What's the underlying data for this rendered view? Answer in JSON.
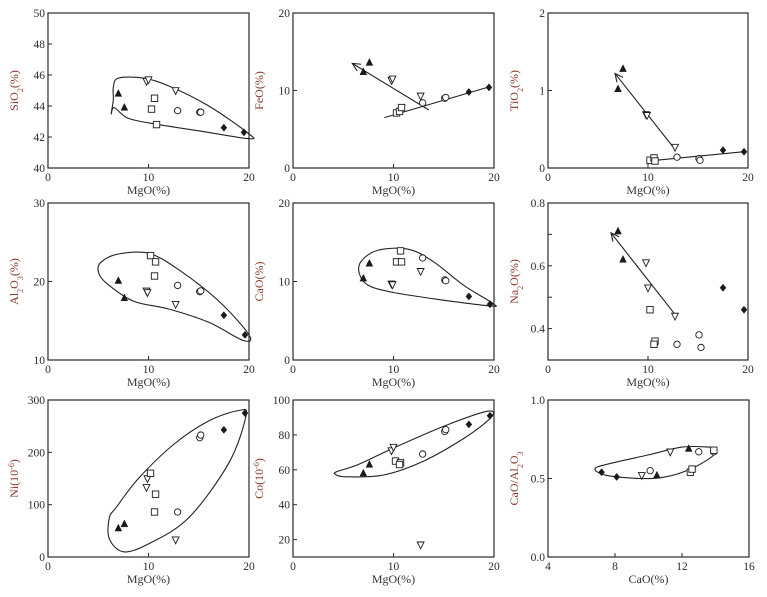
{
  "colors": {
    "axis": "#2a2a2a",
    "ytitle": "#8a3b2c",
    "marker": "#1a1a1a"
  },
  "chart_data": [
    {
      "id": "sio2",
      "type": "scatter",
      "xlabel": "MgO(%)",
      "ylabel": "SiO",
      "ylabel_sub": "2",
      "ylabel_tail": "(%)",
      "xlim": [
        0,
        20
      ],
      "ylim": [
        40,
        50
      ],
      "xticks": [
        0,
        10,
        20
      ],
      "yticks": [
        40,
        42,
        44,
        46,
        48,
        50
      ],
      "xtick_labels": [
        "0",
        "10",
        "20"
      ],
      "ytick_labels": [
        "40",
        "42",
        "44",
        "46",
        "48",
        "50"
      ],
      "points": [
        {
          "m": "tri",
          "x": 7.0,
          "y": 44.8
        },
        {
          "m": "tri",
          "x": 7.6,
          "y": 43.9
        },
        {
          "m": "dtri",
          "x": 9.8,
          "y": 45.6
        },
        {
          "m": "dtri",
          "x": 10.0,
          "y": 45.7
        },
        {
          "m": "dtri",
          "x": 12.7,
          "y": 45.0
        },
        {
          "m": "sq",
          "x": 10.3,
          "y": 43.8
        },
        {
          "m": "sq",
          "x": 10.6,
          "y": 44.5
        },
        {
          "m": "sq",
          "x": 10.8,
          "y": 42.8
        },
        {
          "m": "circ",
          "x": 12.9,
          "y": 43.7
        },
        {
          "m": "circ",
          "x": 15.1,
          "y": 43.6
        },
        {
          "m": "circ",
          "x": 15.2,
          "y": 43.6
        },
        {
          "m": "dia",
          "x": 17.5,
          "y": 42.6
        },
        {
          "m": "dia",
          "x": 19.5,
          "y": 42.3
        }
      ],
      "envelope": [
        [
          6.5,
          44.4
        ],
        [
          6.3,
          43.5
        ],
        [
          6.6,
          43.9
        ],
        [
          8,
          43.2
        ],
        [
          11,
          42.8
        ],
        [
          15,
          42.4
        ],
        [
          19.9,
          41.9
        ],
        [
          20,
          42.2
        ],
        [
          16,
          44.0
        ],
        [
          12,
          45.3
        ],
        [
          9.5,
          45.8
        ],
        [
          7,
          45.8
        ],
        [
          6.5,
          45.2
        ]
      ],
      "trends": []
    },
    {
      "id": "feo",
      "type": "scatter",
      "xlabel": "MgO(%)",
      "ylabel": "FeO",
      "ylabel_sub": "",
      "ylabel_tail": "(%)",
      "xlim": [
        0,
        20
      ],
      "ylim": [
        0,
        20
      ],
      "xticks": [
        0,
        10,
        20
      ],
      "yticks": [
        0,
        10,
        20
      ],
      "xtick_labels": [
        "0",
        "10",
        "20"
      ],
      "ytick_labels": [
        "0",
        "10",
        "20"
      ],
      "points": [
        {
          "m": "tri",
          "x": 7.0,
          "y": 12.4
        },
        {
          "m": "tri",
          "x": 7.6,
          "y": 13.6
        },
        {
          "m": "dtri",
          "x": 9.8,
          "y": 11.3
        },
        {
          "m": "dtri",
          "x": 9.9,
          "y": 11.5
        },
        {
          "m": "dtri",
          "x": 12.7,
          "y": 9.3
        },
        {
          "m": "sq",
          "x": 10.3,
          "y": 7.1
        },
        {
          "m": "sq",
          "x": 10.6,
          "y": 7.3
        },
        {
          "m": "sq",
          "x": 10.8,
          "y": 7.8
        },
        {
          "m": "circ",
          "x": 12.9,
          "y": 8.4
        },
        {
          "m": "circ",
          "x": 15.1,
          "y": 9.0
        },
        {
          "m": "circ",
          "x": 15.2,
          "y": 9.1
        },
        {
          "m": "dia",
          "x": 17.5,
          "y": 9.8
        },
        {
          "m": "dia",
          "x": 19.5,
          "y": 10.4
        }
      ],
      "envelope": [],
      "trends": [
        {
          "x1": 9.1,
          "y1": 6.5,
          "x2": 19.6,
          "y2": 10.5,
          "arrow": false
        },
        {
          "x1": 13.5,
          "y1": 7.5,
          "x2": 5.9,
          "y2": 13.5,
          "arrow": true
        }
      ]
    },
    {
      "id": "tio2",
      "type": "scatter",
      "xlabel": "MgO(%)",
      "ylabel": "TiO",
      "ylabel_sub": "2",
      "ylabel_tail": "(%)",
      "xlim": [
        0,
        20
      ],
      "ylim": [
        0,
        2
      ],
      "xticks": [
        0,
        10,
        20
      ],
      "yticks": [
        0,
        1,
        2
      ],
      "xtick_labels": [
        "0",
        "10",
        "20"
      ],
      "ytick_labels": [
        "0",
        "1",
        "2"
      ],
      "points": [
        {
          "m": "tri",
          "x": 7.0,
          "y": 1.02
        },
        {
          "m": "tri",
          "x": 7.5,
          "y": 1.28
        },
        {
          "m": "dtri",
          "x": 9.8,
          "y": 0.69
        },
        {
          "m": "dtri",
          "x": 9.9,
          "y": 0.68
        },
        {
          "m": "dtri",
          "x": 12.7,
          "y": 0.27
        },
        {
          "m": "sq",
          "x": 10.2,
          "y": 0.1
        },
        {
          "m": "sq",
          "x": 10.6,
          "y": 0.13
        },
        {
          "m": "sq",
          "x": 10.7,
          "y": 0.09
        },
        {
          "m": "circ",
          "x": 12.9,
          "y": 0.14
        },
        {
          "m": "circ",
          "x": 15.1,
          "y": 0.12
        },
        {
          "m": "circ",
          "x": 15.2,
          "y": 0.1
        },
        {
          "m": "dia",
          "x": 17.5,
          "y": 0.23
        },
        {
          "m": "dia",
          "x": 19.6,
          "y": 0.21
        }
      ],
      "envelope": [],
      "trends": [
        {
          "x1": 10.0,
          "y1": 0.09,
          "x2": 19.6,
          "y2": 0.21,
          "arrow": false
        },
        {
          "x1": 12.7,
          "y1": 0.24,
          "x2": 6.7,
          "y2": 1.22,
          "arrow": true
        }
      ]
    },
    {
      "id": "al2o3",
      "type": "scatter",
      "xlabel": "MgO(%)",
      "ylabel": "Al",
      "ylabel_sub": "2",
      "ylabel_mid": "O",
      "ylabel_sub2": "3",
      "ylabel_tail": "(%)",
      "xlim": [
        0,
        20
      ],
      "ylim": [
        10,
        30
      ],
      "xticks": [
        0,
        10,
        20
      ],
      "yticks": [
        10,
        20,
        30
      ],
      "xtick_labels": [
        "0",
        "10",
        "20"
      ],
      "ytick_labels": [
        "10",
        "20",
        "30"
      ],
      "points": [
        {
          "m": "tri",
          "x": 7.0,
          "y": 20.1
        },
        {
          "m": "tri",
          "x": 7.6,
          "y": 17.9
        },
        {
          "m": "dtri",
          "x": 9.8,
          "y": 18.8
        },
        {
          "m": "dtri",
          "x": 9.9,
          "y": 18.6
        },
        {
          "m": "dtri",
          "x": 12.7,
          "y": 17.1
        },
        {
          "m": "sq",
          "x": 10.2,
          "y": 23.3
        },
        {
          "m": "sq",
          "x": 10.7,
          "y": 22.5
        },
        {
          "m": "sq",
          "x": 10.6,
          "y": 20.7
        },
        {
          "m": "circ",
          "x": 12.9,
          "y": 19.5
        },
        {
          "m": "circ",
          "x": 15.1,
          "y": 18.7
        },
        {
          "m": "circ",
          "x": 15.2,
          "y": 18.8
        },
        {
          "m": "dia",
          "x": 17.5,
          "y": 15.7
        },
        {
          "m": "dia",
          "x": 19.6,
          "y": 13.2
        }
      ],
      "envelope": [
        [
          5.0,
          21.3
        ],
        [
          5.8,
          19.8
        ],
        [
          8.5,
          17.5
        ],
        [
          12,
          16.5
        ],
        [
          16,
          14.8
        ],
        [
          19.4,
          12.5
        ],
        [
          20,
          13.2
        ],
        [
          17,
          17.5
        ],
        [
          13,
          21.5
        ],
        [
          10,
          23.6
        ],
        [
          7,
          23.5
        ],
        [
          5.3,
          22.5
        ]
      ],
      "trends": []
    },
    {
      "id": "cao",
      "type": "scatter",
      "xlabel": "MgO(%)",
      "ylabel": "CaO",
      "ylabel_sub": "",
      "ylabel_tail": "(%)",
      "xlim": [
        0,
        20
      ],
      "ylim": [
        0,
        20
      ],
      "xticks": [
        0,
        10,
        20
      ],
      "yticks": [
        0,
        10,
        20
      ],
      "xtick_labels": [
        "0",
        "10",
        "20"
      ],
      "ytick_labels": [
        "0",
        "10",
        "20"
      ],
      "points": [
        {
          "m": "tri",
          "x": 7.0,
          "y": 10.4
        },
        {
          "m": "tri",
          "x": 7.6,
          "y": 12.3
        },
        {
          "m": "dtri",
          "x": 9.8,
          "y": 9.7
        },
        {
          "m": "dtri",
          "x": 9.9,
          "y": 9.6
        },
        {
          "m": "dtri",
          "x": 12.7,
          "y": 11.3
        },
        {
          "m": "sq",
          "x": 10.3,
          "y": 12.5
        },
        {
          "m": "sq",
          "x": 10.8,
          "y": 12.5
        },
        {
          "m": "sq",
          "x": 10.7,
          "y": 13.9
        },
        {
          "m": "circ",
          "x": 12.9,
          "y": 13.0
        },
        {
          "m": "circ",
          "x": 15.1,
          "y": 10.2
        },
        {
          "m": "circ",
          "x": 15.2,
          "y": 10.1
        },
        {
          "m": "dia",
          "x": 17.5,
          "y": 8.1
        },
        {
          "m": "dia",
          "x": 19.6,
          "y": 7.1
        }
      ],
      "envelope": [
        [
          6.6,
          11.0
        ],
        [
          7.5,
          9.5
        ],
        [
          10,
          8.6
        ],
        [
          14,
          7.8
        ],
        [
          19.5,
          6.9
        ],
        [
          19.9,
          7.2
        ],
        [
          17,
          9.5
        ],
        [
          14,
          12.5
        ],
        [
          11.5,
          14.1
        ],
        [
          8.5,
          14.0
        ],
        [
          6.8,
          12.6
        ]
      ],
      "trends": []
    },
    {
      "id": "na2o",
      "type": "scatter",
      "xlabel": "MgO(%)",
      "ylabel": "Na",
      "ylabel_sub": "2",
      "ylabel_tail": "O(%)",
      "xlim": [
        0,
        20
      ],
      "ylim": [
        0.3,
        0.8
      ],
      "xticks": [
        0,
        10,
        20
      ],
      "yticks": [
        0.3,
        0.4,
        0.5,
        0.6,
        0.7,
        0.8
      ],
      "xtick_labels": [
        "0",
        "10",
        "20"
      ],
      "ytick_labels": [
        "",
        "0.4",
        "",
        "0.6",
        "",
        "0.8"
      ],
      "points": [
        {
          "m": "tri",
          "x": 7.0,
          "y": 0.71
        },
        {
          "m": "tri",
          "x": 7.5,
          "y": 0.62
        },
        {
          "m": "dtri",
          "x": 9.8,
          "y": 0.61
        },
        {
          "m": "dtri",
          "x": 10.0,
          "y": 0.53
        },
        {
          "m": "dtri",
          "x": 12.7,
          "y": 0.44
        },
        {
          "m": "sq",
          "x": 10.2,
          "y": 0.46
        },
        {
          "m": "sq",
          "x": 10.7,
          "y": 0.36
        },
        {
          "m": "sq",
          "x": 10.6,
          "y": 0.35
        },
        {
          "m": "circ",
          "x": 12.9,
          "y": 0.35
        },
        {
          "m": "circ",
          "x": 15.1,
          "y": 0.38
        },
        {
          "m": "circ",
          "x": 15.3,
          "y": 0.34
        },
        {
          "m": "dia",
          "x": 17.5,
          "y": 0.53
        },
        {
          "m": "dia",
          "x": 19.6,
          "y": 0.46
        }
      ],
      "envelope": [],
      "trends": [
        {
          "x1": 12.7,
          "y1": 0.445,
          "x2": 6.3,
          "y2": 0.705,
          "arrow": true
        }
      ]
    },
    {
      "id": "ni",
      "type": "scatter",
      "xlabel": "MgO(%)",
      "ylabel": "Ni(10",
      "ylabel_sup": "-6",
      "ylabel_tail": ")",
      "xlim": [
        0,
        20
      ],
      "ylim": [
        0,
        300
      ],
      "xticks": [
        0,
        10,
        20
      ],
      "yticks": [
        0,
        100,
        200,
        300
      ],
      "xtick_labels": [
        "0",
        "10",
        "20"
      ],
      "ytick_labels": [
        "0",
        "100",
        "200",
        "300"
      ],
      "points": [
        {
          "m": "tri",
          "x": 7.0,
          "y": 55
        },
        {
          "m": "tri",
          "x": 7.6,
          "y": 63
        },
        {
          "m": "dtri",
          "x": 9.8,
          "y": 133
        },
        {
          "m": "dtri",
          "x": 9.9,
          "y": 150
        },
        {
          "m": "dtri",
          "x": 12.7,
          "y": 33
        },
        {
          "m": "sq",
          "x": 10.2,
          "y": 160
        },
        {
          "m": "sq",
          "x": 10.7,
          "y": 120
        },
        {
          "m": "sq",
          "x": 10.6,
          "y": 86
        },
        {
          "m": "circ",
          "x": 12.9,
          "y": 86
        },
        {
          "m": "circ",
          "x": 15.1,
          "y": 228
        },
        {
          "m": "circ",
          "x": 15.2,
          "y": 233
        },
        {
          "m": "dia",
          "x": 17.5,
          "y": 243
        },
        {
          "m": "dia",
          "x": 19.6,
          "y": 275
        }
      ],
      "envelope": [
        [
          6.1,
          75
        ],
        [
          6.1,
          35
        ],
        [
          7.5,
          10
        ],
        [
          10,
          25
        ],
        [
          14,
          75
        ],
        [
          18,
          180
        ],
        [
          19.7,
          270
        ],
        [
          19,
          280
        ],
        [
          16,
          260
        ],
        [
          12.5,
          215
        ],
        [
          9,
          150
        ],
        [
          6.8,
          95
        ]
      ],
      "trends": []
    },
    {
      "id": "co",
      "type": "scatter",
      "xlabel": "MgO(%)",
      "ylabel": "Co(10",
      "ylabel_sup": "-6",
      "ylabel_tail": ")",
      "xlim": [
        0,
        20
      ],
      "ylim": [
        10,
        100
      ],
      "xticks": [
        0,
        10,
        20
      ],
      "yticks": [
        20,
        40,
        60,
        80,
        100
      ],
      "xtick_labels": [
        "0",
        "10",
        "20"
      ],
      "ytick_labels": [
        "20",
        "40",
        "60",
        "80",
        "100"
      ],
      "points": [
        {
          "m": "tri",
          "x": 7.0,
          "y": 58
        },
        {
          "m": "tri",
          "x": 7.6,
          "y": 63
        },
        {
          "m": "dtri",
          "x": 9.8,
          "y": 71
        },
        {
          "m": "dtri",
          "x": 10.0,
          "y": 73
        },
        {
          "m": "dtri",
          "x": 12.7,
          "y": 17
        },
        {
          "m": "sq",
          "x": 10.2,
          "y": 65
        },
        {
          "m": "sq",
          "x": 10.7,
          "y": 64
        },
        {
          "m": "sq",
          "x": 10.6,
          "y": 63
        },
        {
          "m": "circ",
          "x": 12.9,
          "y": 69
        },
        {
          "m": "circ",
          "x": 15.1,
          "y": 82
        },
        {
          "m": "circ",
          "x": 15.2,
          "y": 83
        },
        {
          "m": "dia",
          "x": 17.5,
          "y": 86
        },
        {
          "m": "dia",
          "x": 19.6,
          "y": 91
        }
      ],
      "envelope": [
        [
          4.2,
          57.5
        ],
        [
          5.2,
          56
        ],
        [
          9,
          57
        ],
        [
          13,
          65
        ],
        [
          17,
          78
        ],
        [
          19.7,
          90
        ],
        [
          19.3,
          93.5
        ],
        [
          15,
          85
        ],
        [
          10,
          72.5
        ],
        [
          6.5,
          63
        ],
        [
          4.4,
          59
        ]
      ],
      "trends": []
    },
    {
      "id": "cao_al2o3",
      "type": "scatter",
      "xlabel": "CaO(%)",
      "ylabel": "CaO/Al",
      "ylabel_sub": "2",
      "ylabel_mid": "O",
      "ylabel_sub2": "3",
      "ylabel_tail": "",
      "xlim": [
        4,
        16
      ],
      "ylim": [
        0,
        1
      ],
      "xticks": [
        4,
        8,
        12,
        16
      ],
      "yticks": [
        0,
        0.5,
        1
      ],
      "xtick_labels": [
        "4",
        "8",
        "12",
        "16"
      ],
      "ytick_labels": [
        "0.0",
        "0.5",
        "1.0"
      ],
      "points": [
        {
          "m": "dia",
          "x": 7.2,
          "y": 0.54
        },
        {
          "m": "dia",
          "x": 8.1,
          "y": 0.51
        },
        {
          "m": "dtri",
          "x": 9.6,
          "y": 0.52
        },
        {
          "m": "dtri",
          "x": 11.3,
          "y": 0.67
        },
        {
          "m": "tri",
          "x": 10.5,
          "y": 0.52
        },
        {
          "m": "tri",
          "x": 12.4,
          "y": 0.69
        },
        {
          "m": "circ",
          "x": 10.1,
          "y": 0.55
        },
        {
          "m": "circ",
          "x": 13.0,
          "y": 0.67
        },
        {
          "m": "circ",
          "x": 13.9,
          "y": 0.67
        },
        {
          "m": "sq",
          "x": 12.5,
          "y": 0.54
        },
        {
          "m": "sq",
          "x": 12.6,
          "y": 0.56
        },
        {
          "m": "sq",
          "x": 13.9,
          "y": 0.68
        }
      ],
      "envelope": [
        [
          6.8,
          0.56
        ],
        [
          7.5,
          0.52
        ],
        [
          9.5,
          0.5
        ],
        [
          11,
          0.51
        ],
        [
          12.5,
          0.56
        ],
        [
          13.8,
          0.64
        ],
        [
          14.0,
          0.69
        ],
        [
          13.6,
          0.7
        ],
        [
          12,
          0.7
        ],
        [
          10,
          0.65
        ],
        [
          7.5,
          0.59
        ]
      ],
      "trends": []
    }
  ]
}
